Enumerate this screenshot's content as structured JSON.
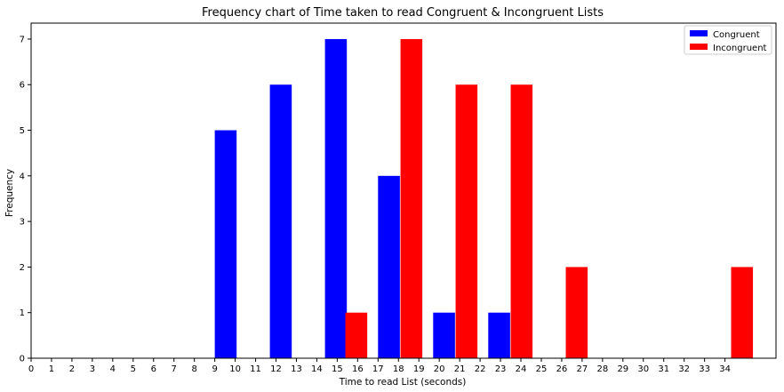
{
  "chart_data": {
    "type": "bar",
    "title": "Frequency chart of Time taken to read Congruent & Incongruent Lists",
    "xlabel": "Time to read List (seconds)",
    "ylabel": "Frequency",
    "xlim": [
      0,
      36.5
    ],
    "ylim": [
      0,
      7.35
    ],
    "grid": false,
    "legend_position": "top-right",
    "x_ticks": [
      "0",
      "1",
      "2",
      "3",
      "4",
      "5",
      "6",
      "7",
      "8",
      "9",
      "10",
      "11",
      "12",
      "13",
      "14",
      "15",
      "16",
      "17",
      "18",
      "19",
      "20",
      "21",
      "22",
      "23",
      "24",
      "25",
      "26",
      "27",
      "28",
      "29",
      "30",
      "31",
      "32",
      "33",
      "34"
    ],
    "y_ticks": [
      "0",
      "1",
      "2",
      "3",
      "4",
      "5",
      "6",
      "7"
    ],
    "bar_width": 1.07,
    "series": [
      {
        "name": "Congruent",
        "color": "#0000ff",
        "points": [
          {
            "x": 9.0,
            "y": 5
          },
          {
            "x": 11.7,
            "y": 6
          },
          {
            "x": 14.4,
            "y": 7
          },
          {
            "x": 17.0,
            "y": 4
          },
          {
            "x": 19.7,
            "y": 1
          },
          {
            "x": 22.4,
            "y": 1
          }
        ]
      },
      {
        "name": "Incongruent",
        "color": "#ff0000",
        "points": [
          {
            "x": 15.4,
            "y": 1
          },
          {
            "x": 18.1,
            "y": 7
          },
          {
            "x": 20.8,
            "y": 6
          },
          {
            "x": 23.5,
            "y": 6
          },
          {
            "x": 26.2,
            "y": 2
          },
          {
            "x": 34.3,
            "y": 2
          }
        ]
      }
    ]
  }
}
